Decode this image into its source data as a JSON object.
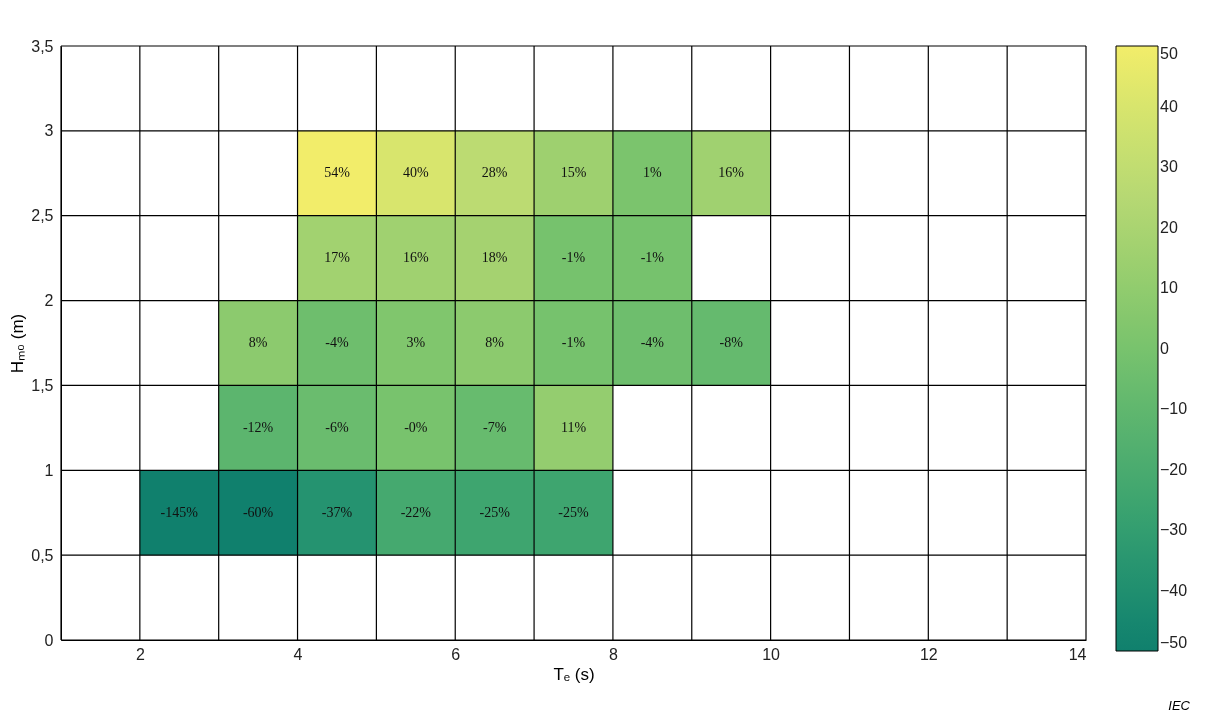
{
  "chart_data": {
    "type": "heatmap",
    "xlabel": "Tₑ (s)",
    "ylabel": "Hₘ₀ (m)",
    "x": [
      2.5,
      3.5,
      4.5,
      5.5,
      6.5,
      7.5,
      8.5,
      9.5
    ],
    "y": [
      2.75,
      2.25,
      1.75,
      1.25,
      0.75
    ],
    "xlim": [
      1,
      14
    ],
    "xticks": [
      2,
      4,
      6,
      8,
      10,
      12,
      14
    ],
    "ylim": [
      0,
      3.5
    ],
    "yticks": [
      0,
      {
        "value": 0.5,
        "label": "0,5"
      },
      1,
      {
        "value": 1.5,
        "label": "1,5"
      },
      2,
      {
        "value": 2.5,
        "label": "2,5"
      },
      3,
      {
        "value": 3.5,
        "label": "3,5"
      }
    ],
    "grid": true,
    "cells": [
      [
        null,
        null,
        54,
        40,
        28,
        15,
        1,
        16
      ],
      [
        null,
        null,
        17,
        16,
        18,
        -1,
        -1,
        null
      ],
      [
        null,
        8,
        -4,
        3,
        8,
        -1,
        -4,
        -8
      ],
      [
        null,
        -12,
        -6,
        0,
        -7,
        11,
        null,
        null
      ],
      [
        -145,
        -60,
        -37,
        -22,
        -25,
        -25,
        null,
        null
      ]
    ],
    "cell_labels": [
      [
        null,
        null,
        "54%",
        "40%",
        "28%",
        "15%",
        "1%",
        "16%"
      ],
      [
        null,
        null,
        "17%",
        "16%",
        "18%",
        "-1%",
        "-1%",
        null
      ],
      [
        null,
        "8%",
        "-4%",
        "3%",
        "8%",
        "-1%",
        "-4%",
        "-8%"
      ],
      [
        null,
        "-12%",
        "-6%",
        "-0%",
        "-7%",
        "11%",
        null,
        null
      ],
      [
        "-145%",
        "-60%",
        "-37%",
        "-22%",
        "-25%",
        "-25%",
        null,
        null
      ]
    ],
    "clim": [
      -50,
      50
    ],
    "cticks": [
      {
        "value": -50,
        "label": "−50"
      },
      {
        "value": -40,
        "label": "−40"
      },
      {
        "value": -30,
        "label": "−30"
      },
      {
        "value": -20,
        "label": "−20"
      },
      {
        "value": -10,
        "label": "−10"
      },
      0,
      10,
      20,
      30,
      40,
      50
    ],
    "annotations": [
      "IEC"
    ]
  }
}
